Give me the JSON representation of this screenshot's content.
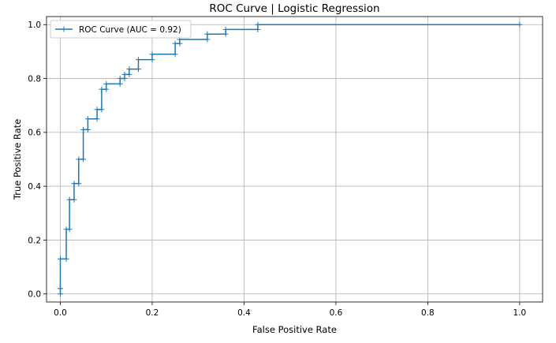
{
  "chart_data": {
    "type": "line",
    "title": "ROC Curve | Logistic Regression",
    "xlabel": "False Positive Rate",
    "ylabel": "True Positive Rate",
    "xlim": [
      -0.03,
      1.05
    ],
    "ylim": [
      -0.03,
      1.03
    ],
    "grid": true,
    "legend_position": "top-left",
    "xticks": [
      0.0,
      0.2,
      0.4,
      0.6,
      0.8,
      1.0
    ],
    "xtick_labels": [
      "0.0",
      "0.2",
      "0.4",
      "0.6",
      "0.8",
      "1.0"
    ],
    "yticks": [
      0.0,
      0.2,
      0.4,
      0.6,
      0.8,
      1.0
    ],
    "ytick_labels": [
      "0.0",
      "0.2",
      "0.4",
      "0.6",
      "0.8",
      "1.0"
    ],
    "series": [
      {
        "name": "ROC Curve (AUC = 0.92)",
        "color": "#1f77b4",
        "marker": "+",
        "x": [
          0.0,
          0.0,
          0.0,
          0.0,
          0.013,
          0.013,
          0.02,
          0.02,
          0.03,
          0.03,
          0.04,
          0.04,
          0.05,
          0.05,
          0.06,
          0.06,
          0.08,
          0.08,
          0.09,
          0.09,
          0.1,
          0.1,
          0.13,
          0.13,
          0.14,
          0.14,
          0.15,
          0.15,
          0.17,
          0.17,
          0.2,
          0.2,
          0.25,
          0.25,
          0.26,
          0.26,
          0.32,
          0.32,
          0.36,
          0.36,
          0.43,
          0.43,
          1.0
        ],
        "y": [
          0.0,
          0.02,
          0.02,
          0.13,
          0.13,
          0.24,
          0.24,
          0.35,
          0.35,
          0.41,
          0.41,
          0.5,
          0.5,
          0.61,
          0.61,
          0.65,
          0.65,
          0.685,
          0.685,
          0.76,
          0.76,
          0.78,
          0.78,
          0.8,
          0.8,
          0.815,
          0.815,
          0.835,
          0.835,
          0.87,
          0.87,
          0.89,
          0.89,
          0.93,
          0.93,
          0.945,
          0.945,
          0.965,
          0.965,
          0.982,
          0.982,
          1.0,
          1.0
        ]
      }
    ]
  }
}
